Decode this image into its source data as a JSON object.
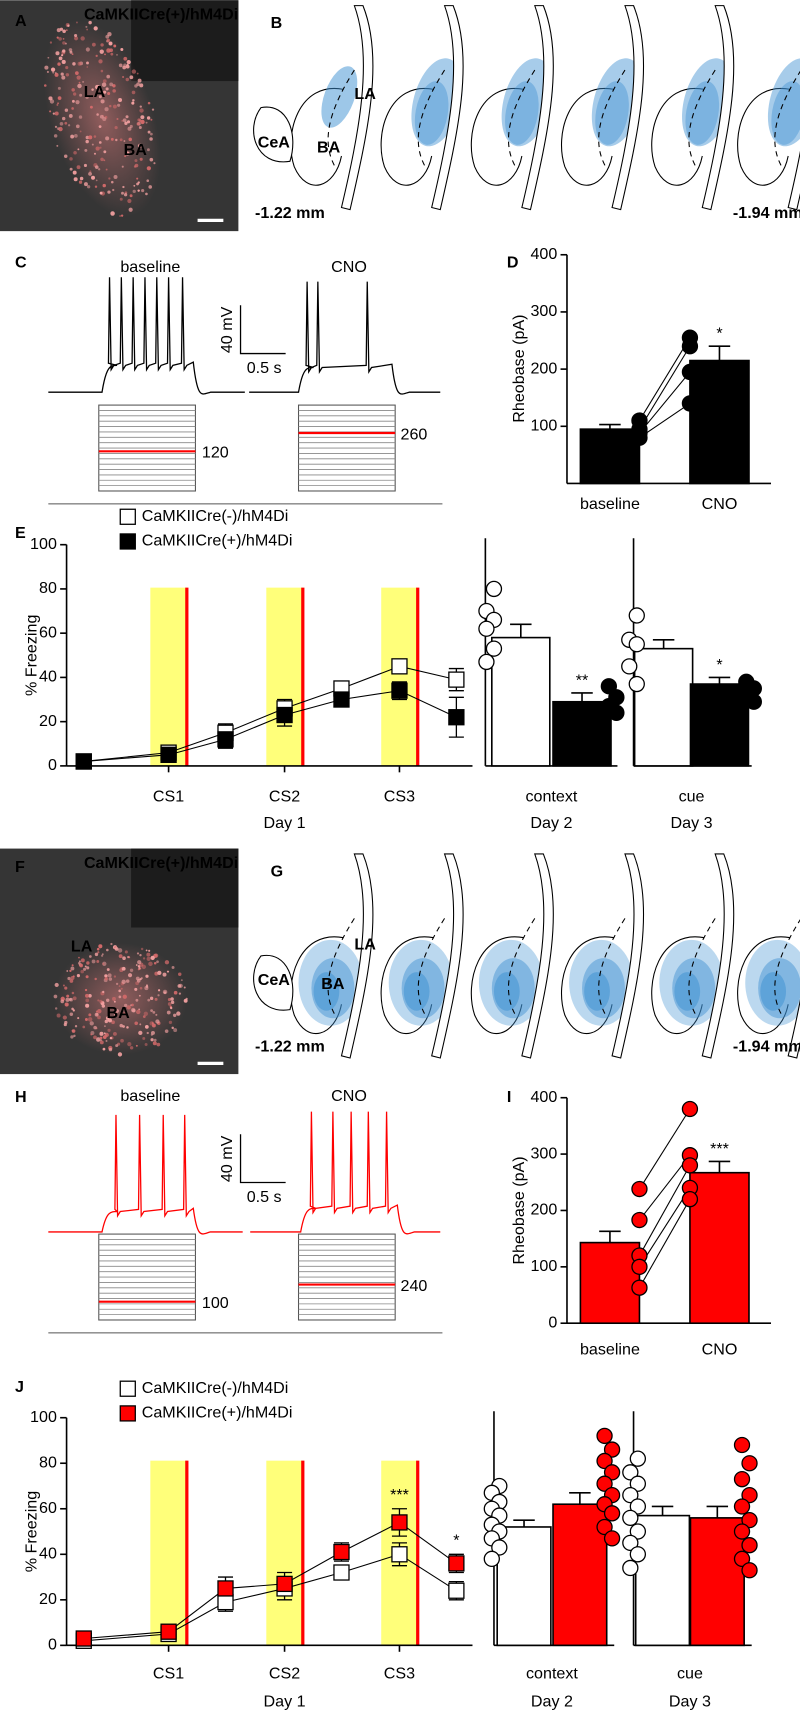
{
  "figure": {
    "panel_letters": [
      "A",
      "B",
      "C",
      "D",
      "E",
      "F",
      "G",
      "H",
      "I",
      "J"
    ],
    "A": {
      "title": "CaMKIICre(+)/hM4Di",
      "labels": [
        "LA",
        "BA"
      ]
    },
    "B": {
      "labels": [
        "LA",
        "CeA",
        "BA"
      ],
      "levels": [
        "-1.22 mm",
        "-1.94 mm"
      ]
    },
    "C": {
      "conditions": [
        "baseline",
        "CNO"
      ],
      "scale": [
        "40 mV",
        "0.5 s"
      ],
      "currents": [
        120,
        260
      ]
    },
    "F": {
      "title": "CaMKIICre(+)/hM4Di",
      "labels": [
        "LA",
        "BA"
      ]
    },
    "G": {
      "labels": [
        "LA",
        "CeA",
        "BA"
      ],
      "levels": [
        "-1.22 mm",
        "-1.94 mm"
      ]
    },
    "H": {
      "conditions": [
        "baseline",
        "CNO"
      ],
      "scale": [
        "40 mV",
        "0.5 s"
      ],
      "currents": [
        100,
        240
      ]
    }
  },
  "chart_data": [
    {
      "type": "bar",
      "ylabel": "Rheobase (pA)",
      "categories": [
        "baseline",
        "CNO"
      ],
      "series": [
        {
          "color": "#000000",
          "values": [
            95,
            215
          ],
          "errors": [
            8,
            25
          ],
          "points": [
            [
              80,
              88,
              95,
              110
            ],
            [
              140,
              195,
              240,
              255
            ]
          ]
        }
      ],
      "paired": true,
      "significance": [
        null,
        "*"
      ],
      "ylim": [
        0,
        400
      ],
      "yticks": [
        100,
        200,
        300,
        400
      ]
    },
    {
      "type": "line",
      "ylabel": "% Freezing",
      "xlabel": "Day 1",
      "categories": [
        null,
        "CS1",
        null,
        "CS2",
        null,
        "CS3",
        null
      ],
      "series": [
        {
          "name": "CaMKIICre(-)/hM4Di",
          "color": "#ffffff",
          "values": [
            2,
            6,
            15,
            26,
            35,
            45,
            39
          ],
          "errors": [
            1,
            2,
            4,
            4,
            3,
            3,
            5
          ]
        },
        {
          "name": "CaMKIICre(+)/hM4Di",
          "color": "#000000",
          "values": [
            2,
            5,
            12,
            23,
            30,
            34,
            22
          ],
          "errors": [
            1,
            2,
            4,
            5,
            3,
            4,
            9
          ]
        }
      ],
      "ylim": [
        0,
        100
      ],
      "yticks": [
        0,
        20,
        40,
        60,
        80,
        100
      ],
      "legend": "upper left"
    },
    {
      "type": "bar",
      "categories": [
        "context",
        "cue"
      ],
      "category_sublabels": [
        "Day 2",
        "Day 3"
      ],
      "series": [
        {
          "color": "#ffffff",
          "values": [
            58,
            53
          ],
          "errors": [
            6,
            4
          ],
          "points": [
            [
              80,
              70,
              66,
              62,
              53,
              47
            ],
            [
              68,
              57,
              55,
              45,
              37
            ]
          ]
        },
        {
          "color": "#000000",
          "values": [
            29,
            37
          ],
          "errors": [
            4,
            3
          ],
          "points": [
            [
              36,
              31,
              27,
              24
            ],
            [
              38,
              35,
              32,
              29
            ]
          ]
        }
      ],
      "significance": [
        "**",
        "*"
      ],
      "ylim": [
        0,
        100
      ]
    },
    {
      "type": "bar",
      "ylabel": "Rheobase (pA)",
      "categories": [
        "baseline",
        "CNO"
      ],
      "series": [
        {
          "color": "#ff0000",
          "values": [
            143,
            267
          ],
          "errors": [
            20,
            20
          ],
          "points": [
            [
              238,
              183,
              120,
              100,
              63
            ],
            [
              380,
              298,
              280,
              240,
              220
            ]
          ]
        }
      ],
      "paired": true,
      "significance": [
        null,
        "***"
      ],
      "ylim": [
        0,
        400
      ],
      "yticks": [
        0,
        100,
        200,
        300,
        400
      ]
    },
    {
      "type": "line",
      "ylabel": "% Freezing",
      "xlabel": "Day 1",
      "categories": [
        null,
        "CS1",
        null,
        "CS2",
        null,
        "CS3",
        null
      ],
      "series": [
        {
          "name": "CaMKIICre(-)/hM4Di",
          "color": "#ffffff",
          "values": [
            2,
            5,
            19,
            25,
            32,
            40,
            24
          ],
          "errors": [
            1,
            2,
            4,
            5,
            3,
            5,
            4
          ]
        },
        {
          "name": "CaMKIICre(+)/hM4Di",
          "color": "#ff0000",
          "values": [
            3,
            6,
            25,
            27,
            41,
            54,
            36
          ],
          "errors": [
            1,
            2,
            5,
            5,
            4,
            6,
            4
          ]
        }
      ],
      "significance": [
        null,
        null,
        null,
        null,
        null,
        "***",
        "*"
      ],
      "ylim": [
        0,
        100
      ],
      "yticks": [
        0,
        20,
        40,
        60,
        80,
        100
      ],
      "legend": "upper left"
    },
    {
      "type": "bar",
      "categories": [
        "context",
        "cue"
      ],
      "category_sublabels": [
        "Day 2",
        "Day 3"
      ],
      "series": [
        {
          "color": "#ffffff",
          "values": [
            52,
            57
          ],
          "errors": [
            3,
            4
          ],
          "points": [
            [
              70,
              67,
              63,
              60,
              57,
              53,
              50,
              47,
              43,
              38
            ],
            [
              82,
              76,
              71,
              66,
              61,
              56,
              50,
              45,
              40,
              34
            ]
          ]
        },
        {
          "color": "#ff0000",
          "values": [
            62,
            56
          ],
          "errors": [
            5,
            5
          ],
          "points": [
            [
              92,
              86,
              81,
              76,
              71,
              66,
              62,
              58,
              52,
              47
            ],
            [
              88,
              80,
              73,
              66,
              61,
              55,
              50,
              44,
              38,
              33
            ]
          ]
        }
      ],
      "ylim": [
        0,
        100
      ]
    }
  ]
}
